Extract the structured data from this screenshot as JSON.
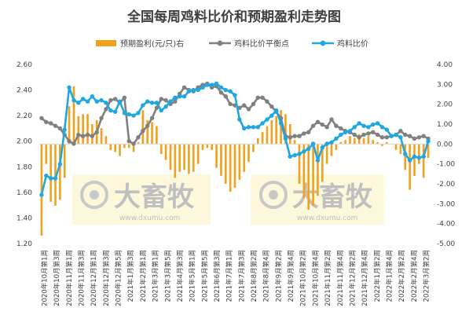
{
  "chart_data": {
    "type": "bar+line",
    "title": "全国每周鸡料比价和预期盈利走势图",
    "legend": [
      {
        "label": "预期盈利(元/只)右",
        "color": "#f0a21e",
        "kind": "bar"
      },
      {
        "label": "鸡料比价平衡点",
        "color": "#808080",
        "kind": "line"
      },
      {
        "label": "鸡料比价",
        "color": "#1ea7e0",
        "kind": "line"
      }
    ],
    "left_axis": {
      "min": 1.2,
      "max": 2.6,
      "ticks": [
        "1.20",
        "1.40",
        "1.60",
        "1.80",
        "2.00",
        "2.20",
        "2.40",
        "2.60"
      ]
    },
    "right_axis": {
      "min": -5,
      "max": 4,
      "ticks": [
        "-5.00",
        "-4.00",
        "-3.00",
        "-2.00",
        "-1.00",
        "0.00",
        "1.00",
        "2.00",
        "3.00",
        "4.00"
      ]
    },
    "x_tick_labels": [
      "2020年10月第1周",
      "2020年10月第3周",
      "2020年11月第1周",
      "2020年11月第3周",
      "2020年12月第1周",
      "2020年12月第3周",
      "2020年12月第5周",
      "2021年1月第3周",
      "2021年2月第1周",
      "2021年3月第1周",
      "2021年3月第5周",
      "2021年4月第3周",
      "2021年5月第1周",
      "2021年5月第5周",
      "2021年6月第3周",
      "2021年7月第1周",
      "2021年7月第3周",
      "2021年8月第2周",
      "2021年8月第4周",
      "2021年9月第2周",
      "2021年9月第4周",
      "2021年10月第2周",
      "2021年10月第4周",
      "2021年11月第2周",
      "2021年11月第4周",
      "2021年12月第2周",
      "2021年12月第4周",
      "2022年1月第2周",
      "2022年1月第4周",
      "2022年2月第2周",
      "2022年2月第4周",
      "2022年3月第2周"
    ],
    "bars": [
      -4.6,
      -1.0,
      -2.9,
      -3.1,
      -2.8,
      -1.7,
      1.9,
      2.9,
      1.4,
      1.5,
      1.5,
      1.0,
      1.2,
      0.8,
      0.4,
      -0.3,
      -0.4,
      -0.6,
      -0.2,
      -0.2,
      -0.4,
      0.1,
      1.7,
      1.2,
      1.1,
      0.9,
      -0.5,
      -0.8,
      -1.3,
      -1.7,
      -1.4,
      -1.3,
      -1.5,
      -1.4,
      -1.0,
      -0.3,
      -0.2,
      -0.3,
      -1.2,
      -1.6,
      -2.0,
      -2.4,
      -2.2,
      -1.8,
      -1.4,
      -0.9,
      -0.4,
      0.3,
      0.6,
      0.9,
      1.2,
      1.4,
      1.7,
      1.5,
      1.0,
      0.2,
      -2.0,
      -2.7,
      -3.3,
      -3.1,
      -2.6,
      -1.9,
      -1.0,
      -0.6,
      -0.3,
      0.1,
      0.2,
      0.4,
      0.3,
      0.5,
      0.3,
      0.4,
      0.2,
      0.1,
      -0.1,
      0.1,
      0.0,
      -0.3,
      -0.5,
      -1.3,
      -2.3,
      -1.6,
      -1.0,
      -1.7,
      -0.7
    ],
    "balance": [
      2.18,
      2.15,
      2.14,
      2.12,
      2.1,
      2.05,
      2.0,
      1.98,
      2.05,
      2.04,
      2.05,
      2.04,
      2.07,
      2.18,
      2.25,
      2.32,
      2.33,
      2.3,
      2.34,
      2.0,
      1.98,
      2.03,
      2.08,
      2.12,
      2.18,
      2.26,
      2.33,
      2.32,
      2.29,
      2.31,
      2.37,
      2.42,
      2.4,
      2.39,
      2.42,
      2.44,
      2.45,
      2.42,
      2.43,
      2.38,
      2.35,
      2.29,
      2.28,
      2.26,
      2.28,
      2.25,
      2.29,
      2.34,
      2.34,
      2.31,
      2.27,
      2.23,
      2.18,
      2.04,
      2.03,
      2.04,
      2.04,
      2.06,
      2.07,
      2.12,
      2.15,
      2.13,
      2.11,
      2.17,
      2.12,
      2.1,
      2.08,
      2.07,
      2.05,
      2.03,
      2.05,
      2.06,
      2.07,
      2.05,
      2.03,
      2.03,
      2.04,
      2.05,
      2.08,
      2.05,
      2.04,
      2.02,
      2.03,
      2.04,
      2.02
    ],
    "ratio": [
      1.58,
      1.73,
      1.71,
      1.71,
      1.82,
      2.09,
      2.42,
      2.32,
      2.3,
      2.33,
      2.31,
      2.35,
      2.31,
      2.32,
      2.3,
      2.24,
      2.23,
      2.31,
      2.22,
      2.21,
      2.2,
      2.22,
      2.28,
      2.31,
      2.3,
      2.3,
      2.24,
      2.27,
      2.31,
      2.34,
      2.35,
      2.35,
      2.39,
      2.4,
      2.4,
      2.42,
      2.44,
      2.44,
      2.45,
      2.42,
      2.4,
      2.39,
      2.36,
      2.17,
      2.1,
      2.11,
      2.11,
      2.11,
      2.14,
      2.17,
      2.2,
      2.24,
      2.14,
      2.02,
      1.88,
      1.89,
      1.9,
      1.92,
      1.94,
      1.98,
      1.85,
      1.95,
      1.98,
      1.99,
      2.02,
      2.05,
      2.07,
      2.08,
      2.11,
      2.14,
      2.12,
      2.11,
      2.13,
      2.14,
      2.11,
      2.09,
      2.04,
      2.05,
      2.03,
      1.9,
      1.85,
      1.88,
      1.87,
      1.88,
      2.0
    ],
    "watermarks": [
      {
        "brand": "大畜牧",
        "url": "www.dxumu.com"
      },
      {
        "brand": "大畜牧",
        "url": "www.dxumu.com"
      }
    ]
  }
}
